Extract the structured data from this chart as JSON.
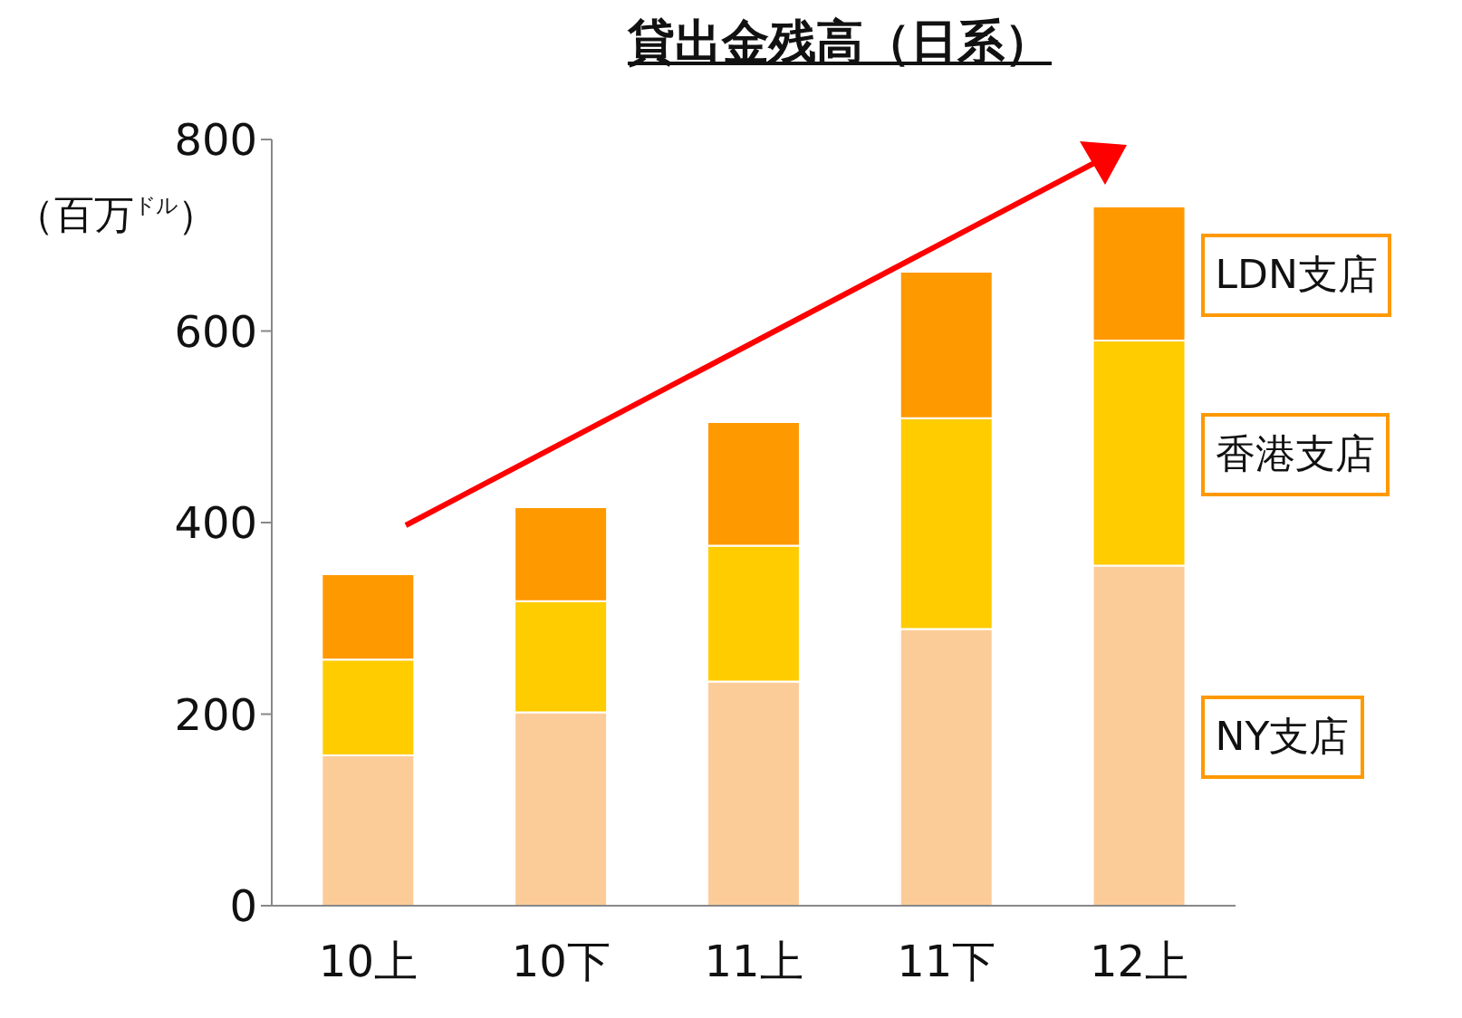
{
  "chart_data": {
    "type": "bar",
    "title": "貸出金残高（日系）",
    "ylabel": "（百万$^{ドル}$）",
    "categories": [
      "10上",
      "10下",
      "11上",
      "11下",
      "12上"
    ],
    "stacked": true,
    "series": [
      {
        "name": "NY支店",
        "color": "#fccc98",
        "values": [
          157,
          202,
          234,
          289,
          355
        ]
      },
      {
        "name": "香港支店",
        "color": "#ffcc00",
        "values": [
          100,
          116,
          142,
          220,
          235
        ]
      },
      {
        "name": "LDN支店",
        "color": "#ff9900",
        "values": [
          89,
          98,
          129,
          153,
          140
        ]
      }
    ],
    "ylim": [
      0,
      800
    ],
    "yticks": [
      0,
      200,
      400,
      600,
      800
    ]
  }
}
